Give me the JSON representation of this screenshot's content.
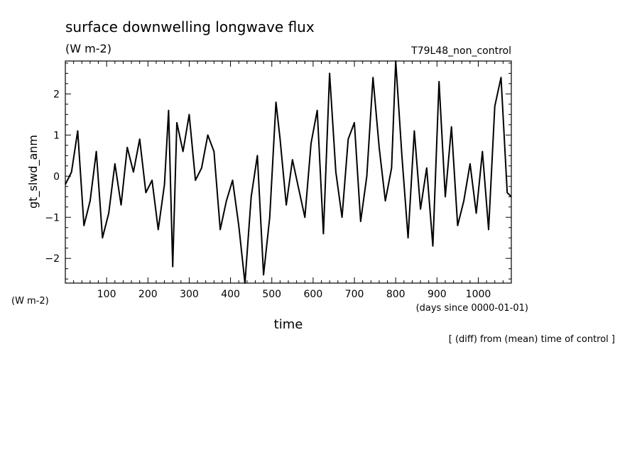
{
  "chart_data": {
    "type": "line",
    "title": "surface downwelling longwave flux",
    "units": "(W m-2)",
    "units_left": "(W m-2)",
    "run_label": "T79L48_non_control",
    "ylabel": "gt_slwd_anm",
    "xlabel": "time",
    "x_units": "(days since 0000-01-01)",
    "footnote": "[ (diff) from (mean) time of control ]",
    "xlim": [
      0,
      1080
    ],
    "ylim": [
      -2.6,
      2.8
    ],
    "x_ticks": [
      100,
      200,
      300,
      400,
      500,
      600,
      700,
      800,
      900,
      1000
    ],
    "y_ticks": [
      -2,
      -1,
      0,
      1,
      2
    ],
    "line_color": "#000000",
    "series": [
      {
        "x": [
          0,
          15,
          30,
          45,
          60,
          75,
          90,
          105,
          120,
          135,
          150,
          165,
          180,
          195,
          210,
          225,
          240,
          250,
          260,
          270,
          285,
          300,
          315,
          330,
          345,
          360,
          375,
          390,
          405,
          420,
          435,
          450,
          465,
          480,
          495,
          510,
          520,
          535,
          550,
          565,
          580,
          595,
          610,
          625,
          640,
          655,
          670,
          685,
          700,
          715,
          730,
          745,
          760,
          775,
          790,
          800,
          815,
          830,
          845,
          860,
          875,
          890,
          905,
          920,
          935,
          950,
          965,
          980,
          995,
          1010,
          1025,
          1040,
          1055,
          1070,
          1080
        ],
        "y": [
          -0.2,
          0.1,
          1.1,
          -1.2,
          -0.6,
          0.6,
          -1.5,
          -0.9,
          0.3,
          -0.7,
          0.7,
          0.1,
          0.9,
          -0.4,
          -0.1,
          -1.3,
          -0.2,
          1.6,
          -2.2,
          1.3,
          0.6,
          1.5,
          -0.1,
          0.2,
          1.0,
          0.6,
          -1.3,
          -0.6,
          -0.1,
          -1.2,
          -2.6,
          -0.5,
          0.5,
          -2.4,
          -1.0,
          1.8,
          0.9,
          -0.7,
          0.4,
          -0.3,
          -1.0,
          0.8,
          1.6,
          -1.4,
          2.5,
          0.1,
          -1.0,
          0.9,
          1.3,
          -1.1,
          0.0,
          2.4,
          0.7,
          -0.6,
          0.2,
          2.8,
          0.5,
          -1.5,
          1.1,
          -0.8,
          0.2,
          -1.7,
          2.3,
          -0.5,
          1.2,
          -1.2,
          -0.6,
          0.3,
          -0.9,
          0.6,
          -1.3,
          1.7,
          2.4,
          -0.4,
          -0.5
        ]
      }
    ]
  }
}
